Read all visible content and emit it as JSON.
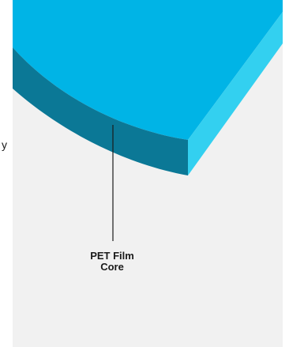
{
  "label": {
    "line1": "PET Film",
    "line2": "Core"
  },
  "edge_text": "y",
  "colors": {
    "background": "#f1f1f1",
    "top_face": "#00b4e6",
    "front_face": "#0b7896",
    "side_face": "#33d0f0",
    "leader_line": "#1a1a1a",
    "label_text": "#1a1a1a"
  }
}
